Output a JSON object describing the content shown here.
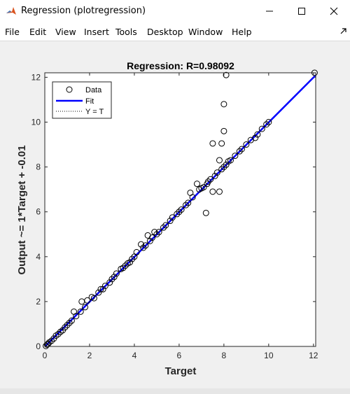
{
  "window": {
    "title": "Regression (plotregression)",
    "icon": "matlab-logo-icon",
    "controls": [
      "minimize-icon",
      "maximize-icon",
      "close-icon"
    ]
  },
  "menu": {
    "items": [
      "File",
      "Edit",
      "View",
      "Insert",
      "Tools",
      "Desktop",
      "Window",
      "Help"
    ],
    "dock_icon": "dock-arrow-icon"
  },
  "colors": {
    "fit_line": "#0000ff",
    "yt_line": "#000000",
    "markers": "#000000",
    "axes_background": "#ffffff",
    "figure_background": "#f0f0f0"
  },
  "chart_data": {
    "type": "scatter",
    "title": "Regression: R=0.98092",
    "xlabel": "Target",
    "ylabel": "Output ~= 1*Target + -0.01",
    "xlim": [
      0,
      12.1
    ],
    "ylim": [
      0,
      12.2
    ],
    "xticks": [
      0,
      2,
      4,
      6,
      8,
      10,
      12
    ],
    "yticks": [
      0,
      2,
      4,
      6,
      8,
      10,
      12
    ],
    "grid": false,
    "legend": {
      "position": "top-left",
      "entries": [
        {
          "label": "Data",
          "style": "open-circle-marker"
        },
        {
          "label": "Fit",
          "style": "solid-blue-line"
        },
        {
          "label": "Y = T",
          "style": "dotted-black-line"
        }
      ]
    },
    "fit_line": {
      "slope": 1,
      "intercept": -0.01
    },
    "identity_line": {
      "slope": 1,
      "intercept": 0
    },
    "series": [
      {
        "name": "Data",
        "points": [
          [
            0.05,
            0.02
          ],
          [
            0.1,
            0.08
          ],
          [
            0.15,
            0.12
          ],
          [
            0.2,
            0.18
          ],
          [
            0.3,
            0.25
          ],
          [
            0.4,
            0.35
          ],
          [
            0.5,
            0.48
          ],
          [
            0.6,
            0.55
          ],
          [
            0.7,
            0.65
          ],
          [
            0.8,
            0.72
          ],
          [
            0.9,
            0.85
          ],
          [
            1.0,
            0.95
          ],
          [
            1.1,
            1.05
          ],
          [
            1.2,
            1.15
          ],
          [
            1.3,
            1.55
          ],
          [
            1.4,
            1.35
          ],
          [
            1.6,
            1.55
          ],
          [
            1.65,
            2.0
          ],
          [
            1.8,
            1.75
          ],
          [
            1.9,
            2.05
          ],
          [
            2.1,
            2.2
          ],
          [
            2.2,
            2.15
          ],
          [
            2.4,
            2.4
          ],
          [
            2.5,
            2.55
          ],
          [
            2.6,
            2.55
          ],
          [
            2.7,
            2.7
          ],
          [
            2.9,
            2.85
          ],
          [
            3.0,
            3.0
          ],
          [
            3.1,
            3.1
          ],
          [
            3.2,
            3.25
          ],
          [
            3.4,
            3.45
          ],
          [
            3.5,
            3.5
          ],
          [
            3.6,
            3.6
          ],
          [
            3.7,
            3.7
          ],
          [
            3.8,
            3.75
          ],
          [
            3.9,
            3.9
          ],
          [
            4.0,
            4.0
          ],
          [
            4.1,
            4.2
          ],
          [
            4.3,
            4.55
          ],
          [
            4.4,
            4.4
          ],
          [
            4.5,
            4.5
          ],
          [
            4.6,
            4.95
          ],
          [
            4.7,
            4.7
          ],
          [
            4.8,
            4.85
          ],
          [
            4.9,
            5.1
          ],
          [
            5.0,
            5.0
          ],
          [
            5.1,
            5.1
          ],
          [
            5.3,
            5.3
          ],
          [
            5.4,
            5.4
          ],
          [
            5.6,
            5.6
          ],
          [
            5.7,
            5.75
          ],
          [
            5.9,
            5.9
          ],
          [
            6.0,
            6.0
          ],
          [
            6.1,
            6.1
          ],
          [
            6.3,
            6.3
          ],
          [
            6.4,
            6.4
          ],
          [
            6.5,
            6.85
          ],
          [
            6.6,
            6.65
          ],
          [
            6.8,
            7.25
          ],
          [
            6.9,
            7.0
          ],
          [
            7.0,
            7.05
          ],
          [
            7.1,
            7.1
          ],
          [
            7.2,
            5.95
          ],
          [
            7.25,
            7.25
          ],
          [
            7.3,
            7.35
          ],
          [
            7.4,
            7.45
          ],
          [
            7.5,
            6.9
          ],
          [
            7.5,
            9.05
          ],
          [
            7.6,
            7.6
          ],
          [
            7.7,
            7.75
          ],
          [
            7.8,
            6.9
          ],
          [
            7.8,
            8.3
          ],
          [
            7.9,
            9.05
          ],
          [
            7.9,
            7.9
          ],
          [
            8.0,
            9.6
          ],
          [
            8.0,
            10.8
          ],
          [
            8.0,
            8.0
          ],
          [
            8.1,
            8.1
          ],
          [
            8.1,
            12.1
          ],
          [
            8.2,
            8.25
          ],
          [
            8.3,
            8.3
          ],
          [
            8.5,
            8.5
          ],
          [
            8.7,
            8.7
          ],
          [
            8.8,
            8.8
          ],
          [
            9.0,
            9.0
          ],
          [
            9.2,
            9.2
          ],
          [
            9.4,
            9.3
          ],
          [
            9.5,
            9.45
          ],
          [
            9.7,
            9.7
          ],
          [
            9.9,
            9.9
          ],
          [
            10.0,
            10.0
          ],
          [
            12.05,
            12.2
          ]
        ]
      }
    ]
  }
}
